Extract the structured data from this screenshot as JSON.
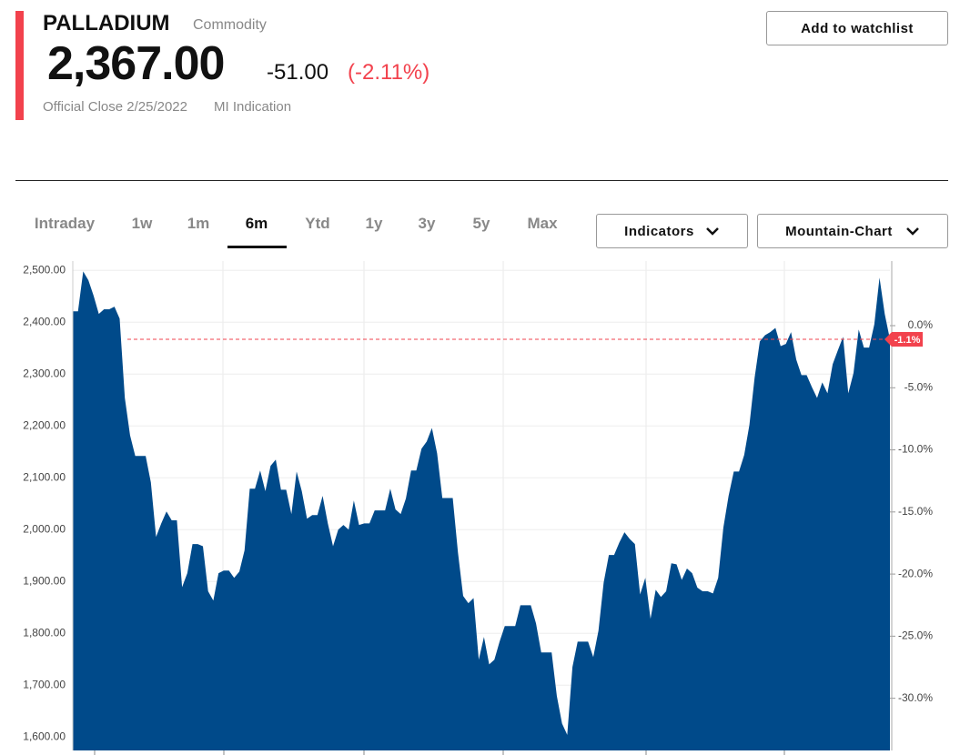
{
  "header": {
    "title": "PALLADIUM",
    "subtitle": "Commodity",
    "price": "2,367.00",
    "change": "-51.00",
    "change_percent": "(-2.11%)",
    "close_note": "Official Close 2/25/2022",
    "indication": "MI Indication",
    "watchlist_button": "Add to watchlist"
  },
  "tabs": {
    "items": [
      "Intraday",
      "1w",
      "1m",
      "6m",
      "Ytd",
      "1y",
      "3y",
      "5y",
      "Max"
    ],
    "active": 3
  },
  "dropdowns": [
    "Indicators",
    "Mountain-Chart"
  ],
  "chart_data": {
    "type": "area",
    "color": "#004a8a",
    "values": [
      2421,
      2421,
      2498,
      2481,
      2451,
      2416,
      2425,
      2425,
      2430,
      2407,
      2254,
      2182,
      2142,
      2142,
      2142,
      2091,
      1986,
      2012,
      2035,
      2018,
      2018,
      1889,
      1916,
      1972,
      1972,
      1968,
      1881,
      1863,
      1916,
      1921,
      1921,
      1907,
      1919,
      1960,
      2079,
      2079,
      2114,
      2074,
      2123,
      2135,
      2077,
      2077,
      2030,
      2112,
      2074,
      2021,
      2028,
      2028,
      2065,
      2012,
      1968,
      2000,
      2009,
      2000,
      2056,
      2009,
      2012,
      2012,
      2037,
      2037,
      2037,
      2079,
      2039,
      2030,
      2060,
      2114,
      2114,
      2156,
      2170,
      2196,
      2147,
      2061,
      2061,
      2061,
      1956,
      1872,
      1858,
      1868,
      1749,
      1793,
      1740,
      1749,
      1784,
      1814,
      1814,
      1814,
      1854,
      1854,
      1854,
      1819,
      1763,
      1763,
      1763,
      1679,
      1626,
      1604,
      1735,
      1784,
      1784,
      1784,
      1754,
      1805,
      1898,
      1951,
      1951,
      1975,
      1995,
      1982,
      1972,
      1875,
      1907,
      1828,
      1884,
      1870,
      1881,
      1935,
      1933,
      1903,
      1925,
      1916,
      1888,
      1881,
      1881,
      1877,
      1907,
      2004,
      2065,
      2112,
      2112,
      2144,
      2202,
      2293,
      2363,
      2375,
      2381,
      2389,
      2354,
      2358,
      2381,
      2328,
      2298,
      2298,
      2275,
      2254,
      2284,
      2263,
      2319,
      2346,
      2372,
      2263,
      2302,
      2386,
      2351,
      2351,
      2396,
      2486,
      2416,
      2367
    ],
    "ylim": [
      1574,
      2518
    ],
    "yticks": [
      {
        "value": 1600,
        "label": "1,600.00"
      },
      {
        "value": 1700,
        "label": "1,700.00"
      },
      {
        "value": 1800,
        "label": "1,800.00"
      },
      {
        "value": 1900,
        "label": "1,900.00"
      },
      {
        "value": 2000,
        "label": "2,000.00"
      },
      {
        "value": 2100,
        "label": "2,100.00"
      },
      {
        "value": 2200,
        "label": "2,200.00"
      },
      {
        "value": 2300,
        "label": "2,300.00"
      },
      {
        "value": 2400,
        "label": "2,400.00"
      },
      {
        "value": 2500,
        "label": "2,500.00"
      }
    ],
    "y2lim": [
      -34.2,
      5.2
    ],
    "y2ticks": [
      {
        "value": 0,
        "label": "0.0%"
      },
      {
        "value": -5,
        "label": "-5.0%"
      },
      {
        "value": -10,
        "label": "-10.0%"
      },
      {
        "value": -15,
        "label": "-15.0%"
      },
      {
        "value": -20,
        "label": "-20.0%"
      },
      {
        "value": -25,
        "label": "-25.0%"
      },
      {
        "value": -30,
        "label": "-30.0%"
      }
    ],
    "reference_line": {
      "value": 2367,
      "label": "-1.1%",
      "color": "#f2424d"
    },
    "grid": true
  }
}
